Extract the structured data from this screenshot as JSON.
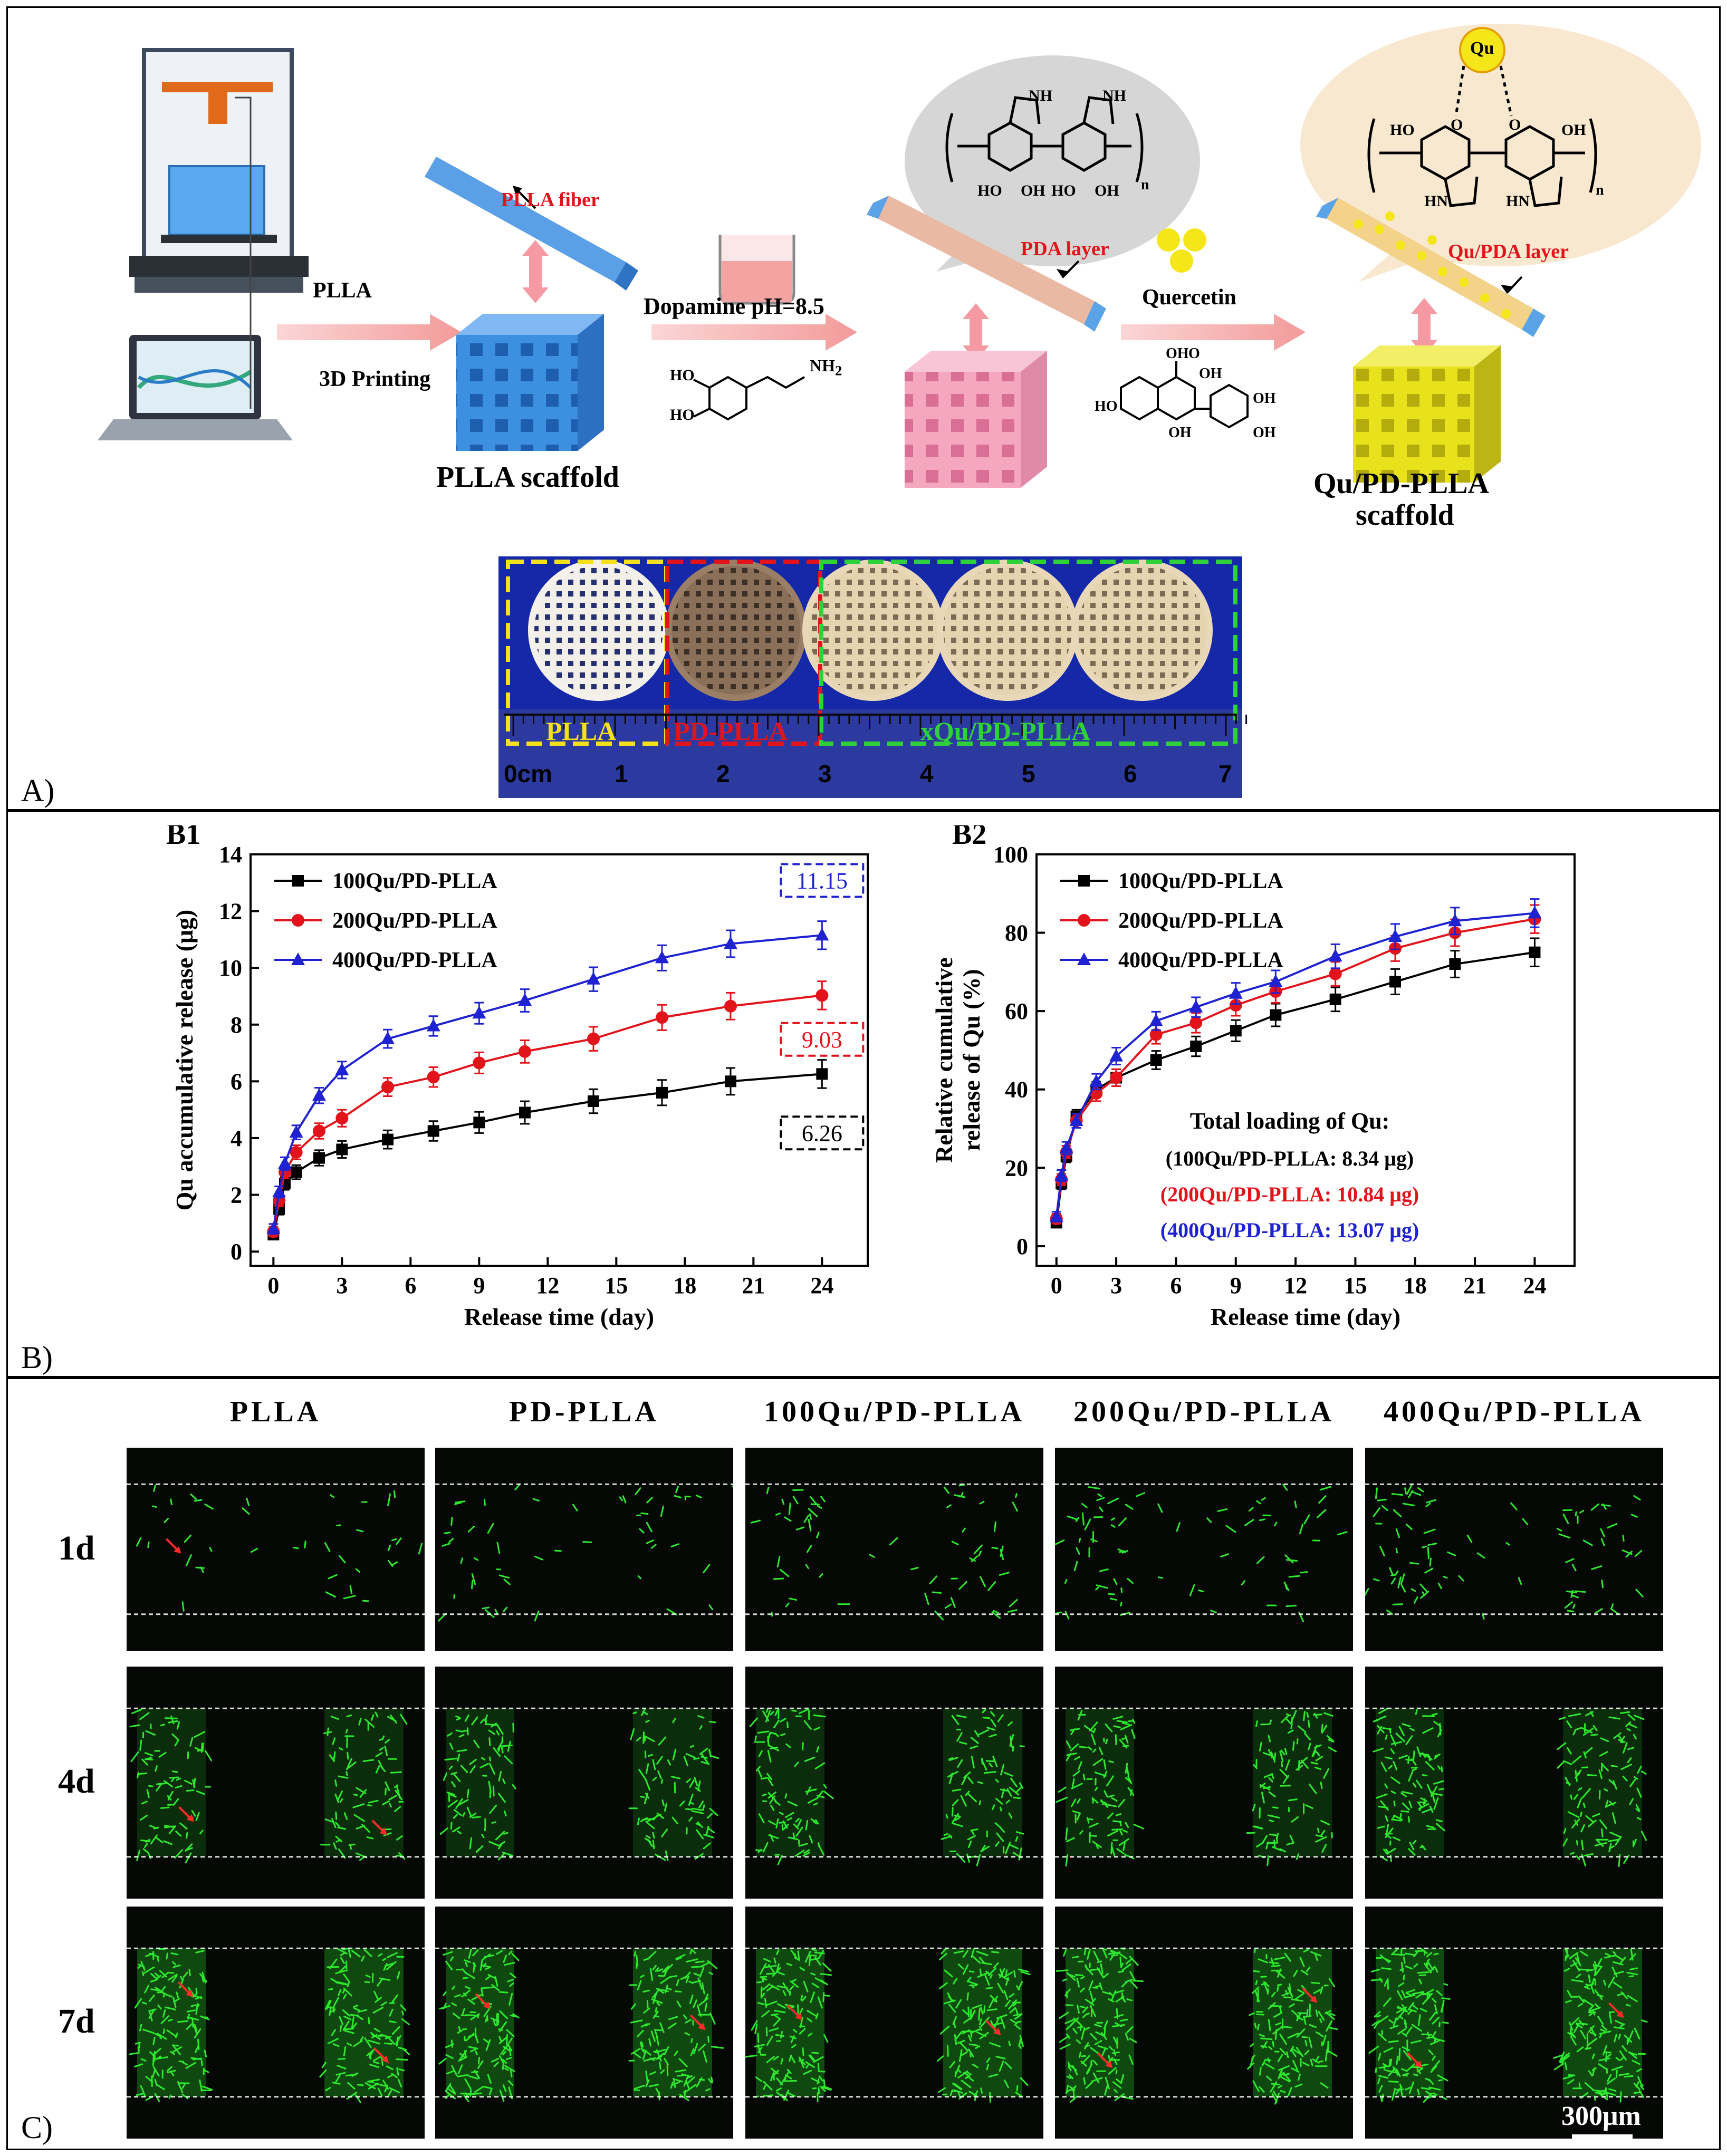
{
  "panel_a": {
    "label": "A)",
    "step1": {
      "material": "PLLA",
      "method": "3D Printing",
      "product": "PLLA scaffold",
      "fiber_label": "PLLA fiber"
    },
    "step2": {
      "reagent": "Dopamine pH=8.5",
      "layer_label": "PDA layer",
      "formula_sub": "NH",
      "formula_sub2": "2",
      "polymer_n": "n"
    },
    "step3": {
      "reagent": "Quercetin",
      "layer_label": "Qu/PDA layer",
      "product_line1": "Qu/PD-PLLA",
      "product_line2": "scaffold",
      "bubble_label": "Qu",
      "polymer_n": "n"
    },
    "chem_labels": {
      "HO": "HO",
      "OH": "OH",
      "NH": "NH",
      "HN": "HN",
      "O": "O"
    },
    "photo": {
      "labels": [
        "PLLA",
        "PD-PLLA",
        "xQu/PD-PLLA"
      ],
      "ruler_unit": "cm",
      "ruler_ticks": [
        "0",
        "1",
        "2",
        "3",
        "4",
        "5",
        "6",
        "7"
      ]
    },
    "colors": {
      "arrow": "#f4a3a3",
      "plla_blue": "#3d8fe0",
      "pd_pink": "#f4a7bf",
      "qu_yellow": "#e7e21c",
      "photo_bg": "#1428a8",
      "yellow_box": "#f5e11b",
      "red_box": "#e3131b",
      "green_box": "#2fd13a"
    }
  },
  "panel_b": {
    "label": "B)",
    "chart_data": [
      {
        "type": "line",
        "panel": "B1",
        "xlabel": "Release time (day)",
        "ylabel": "Qu accumulative release (μg)",
        "xlim": [
          -1,
          26
        ],
        "ylim": [
          -0.5,
          14
        ],
        "xticks": [
          0,
          3,
          6,
          9,
          12,
          15,
          18,
          21,
          24
        ],
        "yticks": [
          0,
          2,
          4,
          6,
          8,
          10,
          12,
          14
        ],
        "x": [
          0,
          0.25,
          0.5,
          1,
          2,
          3,
          5,
          7,
          9,
          11,
          14,
          17,
          20,
          24
        ],
        "series": [
          {
            "name": "100Qu/PD-PLLA",
            "color": "#000000",
            "marker": "square",
            "values": [
              0.6,
              1.5,
              2.4,
              2.8,
              3.3,
              3.6,
              3.95,
              4.25,
              4.55,
              4.9,
              5.3,
              5.6,
              6.0,
              6.26
            ]
          },
          {
            "name": "200Qu/PD-PLLA",
            "color": "#e3131b",
            "marker": "circle",
            "values": [
              0.7,
              1.8,
              2.8,
              3.5,
              4.25,
              4.7,
              5.8,
              6.15,
              6.65,
              7.05,
              7.5,
              8.25,
              8.65,
              9.03
            ]
          },
          {
            "name": "400Qu/PD-PLLA",
            "color": "#1f22d1",
            "marker": "triangle",
            "values": [
              0.8,
              2.1,
              3.1,
              4.2,
              5.5,
              6.4,
              7.5,
              7.95,
              8.4,
              8.85,
              9.6,
              10.35,
              10.85,
              11.15
            ]
          }
        ],
        "annotations": [
          {
            "text": "11.15",
            "color": "#1f22d1"
          },
          {
            "text": "9.03",
            "color": "#e3131b"
          },
          {
            "text": "6.26",
            "color": "#000000"
          }
        ]
      },
      {
        "type": "line",
        "panel": "B2",
        "xlabel": "Release time (day)",
        "ylabel_line1": "Relative cumulative",
        "ylabel_line2": "release of Qu (%)",
        "xlim": [
          -1,
          26
        ],
        "ylim": [
          -5,
          100
        ],
        "xticks": [
          0,
          3,
          6,
          9,
          12,
          15,
          18,
          21,
          24
        ],
        "yticks": [
          0,
          20,
          40,
          60,
          80,
          100
        ],
        "x": [
          0,
          0.25,
          0.5,
          1,
          2,
          3,
          5,
          7,
          9,
          11,
          14,
          17,
          20,
          24
        ],
        "series": [
          {
            "name": "100Qu/PD-PLLA",
            "color": "#000000",
            "marker": "square",
            "values": [
              6,
              16,
              23,
              33,
              40,
              43,
              47.5,
              51,
              55,
              59,
              63,
              67.5,
              72,
              75
            ]
          },
          {
            "name": "200Qu/PD-PLLA",
            "color": "#e3131b",
            "marker": "circle",
            "values": [
              7,
              17,
              24,
              32,
              39,
              43,
              54,
              57,
              61.5,
              65,
              69.5,
              76,
              80,
              83.5
            ]
          },
          {
            "name": "400Qu/PD-PLLA",
            "color": "#1f22d1",
            "marker": "triangle",
            "values": [
              7.5,
              18,
              25,
              32,
              42,
              48.5,
              57.5,
              61,
              64.5,
              67.5,
              74,
              79,
              83,
              85
            ]
          }
        ],
        "annotation_title": "Total loading of Qu:",
        "annotations": [
          {
            "text": "(100Qu/PD-PLLA: 8.34 μg)",
            "color": "#000000"
          },
          {
            "text": "(200Qu/PD-PLLA: 10.84 μg)",
            "color": "#e3131b"
          },
          {
            "text": "(400Qu/PD-PLLA: 13.07 μg)",
            "color": "#1f22d1"
          }
        ]
      }
    ]
  },
  "panel_c": {
    "label": "C)",
    "columns": [
      "PLLA",
      "PD-PLLA",
      "100Qu/PD-PLLA",
      "200Qu/PD-PLLA",
      "400Qu/PD-PLLA"
    ],
    "rows": [
      "1d",
      "4d",
      "7d"
    ],
    "scale_bar": "300μm",
    "colors": {
      "cell": "#2ee82e",
      "arrow": "#ff2a2a"
    }
  }
}
